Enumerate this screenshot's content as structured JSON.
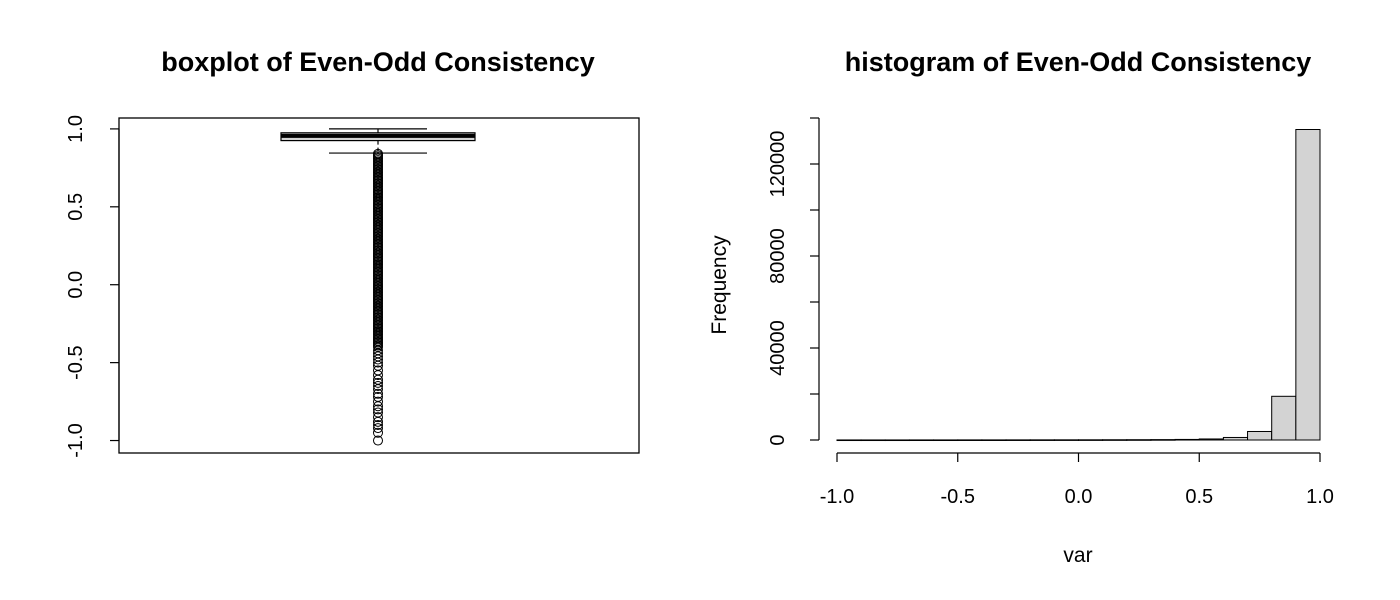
{
  "chart_data": [
    {
      "type": "boxplot",
      "title": "boxplot of Even-Odd Consistency",
      "xlabel": "",
      "ylabel": "",
      "ylim": [
        -1.08,
        1.07
      ],
      "y_ticks": [
        -1.0,
        -0.5,
        0.0,
        0.5,
        1.0
      ],
      "y_tick_labels": [
        "-1.0",
        "-0.5",
        "0.0",
        "0.5",
        "1.0"
      ],
      "box": {
        "whisker_low": 0.845,
        "q1": 0.925,
        "median": 0.955,
        "q3": 0.975,
        "whisker_high": 1.0
      },
      "outliers": [
        0.84,
        0.83,
        0.82,
        0.81,
        0.8,
        0.79,
        0.78,
        0.77,
        0.76,
        0.75,
        0.74,
        0.73,
        0.72,
        0.71,
        0.7,
        0.69,
        0.68,
        0.67,
        0.66,
        0.65,
        0.64,
        0.63,
        0.62,
        0.61,
        0.6,
        0.59,
        0.58,
        0.57,
        0.56,
        0.55,
        0.54,
        0.53,
        0.52,
        0.51,
        0.5,
        0.49,
        0.48,
        0.47,
        0.46,
        0.45,
        0.44,
        0.43,
        0.42,
        0.41,
        0.4,
        0.39,
        0.38,
        0.37,
        0.36,
        0.35,
        0.34,
        0.33,
        0.32,
        0.31,
        0.3,
        0.29,
        0.28,
        0.27,
        0.26,
        0.25,
        0.24,
        0.23,
        0.22,
        0.21,
        0.2,
        0.19,
        0.18,
        0.17,
        0.16,
        0.15,
        0.14,
        0.13,
        0.12,
        0.11,
        0.1,
        0.09,
        0.08,
        0.07,
        0.06,
        0.05,
        0.04,
        0.03,
        0.02,
        0.01,
        0.0,
        -0.01,
        -0.02,
        -0.03,
        -0.04,
        -0.05,
        -0.06,
        -0.07,
        -0.08,
        -0.09,
        -0.1,
        -0.11,
        -0.12,
        -0.13,
        -0.14,
        -0.15,
        -0.16,
        -0.17,
        -0.18,
        -0.19,
        -0.2,
        -0.21,
        -0.22,
        -0.23,
        -0.24,
        -0.25,
        -0.26,
        -0.27,
        -0.28,
        -0.29,
        -0.3,
        -0.31,
        -0.32,
        -0.33,
        -0.34,
        -0.35,
        -0.36,
        -0.37,
        -0.38,
        -0.39,
        -0.4,
        -0.42,
        -0.44,
        -0.46,
        -0.48,
        -0.5,
        -0.52,
        -0.55,
        -0.58,
        -0.61,
        -0.63,
        -0.65,
        -0.67,
        -0.7,
        -0.72,
        -0.75,
        -0.78,
        -0.8,
        -0.82,
        -0.85,
        -0.88,
        -0.9,
        -0.92,
        -0.95,
        -1.0
      ],
      "grid": false
    },
    {
      "type": "bar",
      "subtype": "histogram",
      "title": "histogram of Even-Odd Consistency",
      "xlabel": "var",
      "ylabel": "Frequency",
      "xlim": [
        -1.0,
        1.0
      ],
      "ylim": [
        0,
        140000
      ],
      "bin_edges": [
        -1.0,
        -0.9,
        -0.8,
        -0.7,
        -0.6,
        -0.5,
        -0.4,
        -0.3,
        -0.2,
        -0.1,
        0.0,
        0.1,
        0.2,
        0.3,
        0.4,
        0.5,
        0.6,
        0.7,
        0.8,
        0.9,
        1.0
      ],
      "values": [
        30,
        30,
        30,
        40,
        40,
        50,
        50,
        60,
        70,
        80,
        90,
        110,
        130,
        170,
        250,
        450,
        1100,
        3700,
        19000,
        135000
      ],
      "x_ticks": [
        -1.0,
        -0.5,
        0.0,
        0.5,
        1.0
      ],
      "x_tick_labels": [
        "-1.0",
        "-0.5",
        "0.0",
        "0.5",
        "1.0"
      ],
      "y_ticks": [
        0,
        40000,
        80000,
        120000
      ],
      "y_tick_labels": [
        "0",
        "40000",
        "80000",
        "120000"
      ],
      "y_minor_ticks": [
        20000,
        60000,
        100000,
        140000
      ],
      "bar_color": "#d3d3d3",
      "grid": false
    }
  ]
}
